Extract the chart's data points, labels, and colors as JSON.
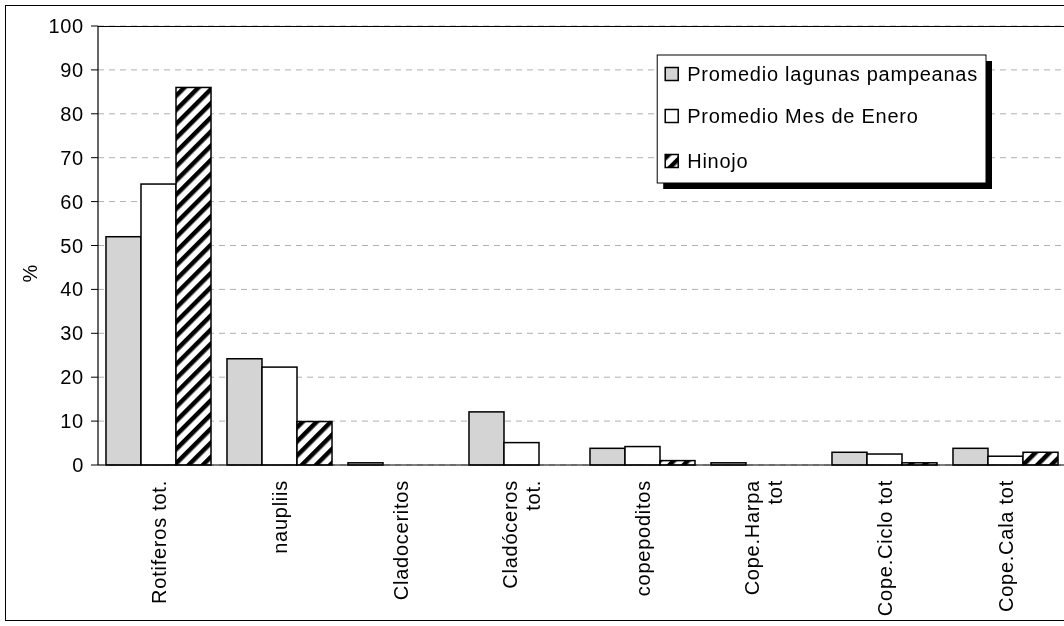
{
  "chart_data": {
    "type": "bar",
    "ylabel": "%",
    "categories": [
      "Rotiferos tot.",
      "naupliis",
      "Cladoceritos",
      "Cladóceros\ntot.",
      "copepoditos",
      "Cope.Harpa\ntot",
      "Cope.Ciclo tot",
      "Cope.Cala tot"
    ],
    "series": [
      {
        "name": "Promedio lagunas pampeanas",
        "color": "#d4d4d4",
        "values": [
          52,
          24.2,
          0.5,
          12.1,
          3.8,
          0.5,
          2.9,
          3.8
        ]
      },
      {
        "name": "Promedio Mes de Enero",
        "color": "#ffffff",
        "values": [
          64,
          22.3,
          0,
          5.1,
          4.2,
          0,
          2.5,
          2.0
        ]
      },
      {
        "name": "Hinojo",
        "color": "#000000",
        "values": [
          86,
          9.9,
          0,
          0,
          1.0,
          0,
          0.5,
          2.9
        ]
      }
    ],
    "ylim": [
      0,
      100
    ],
    "yticks": [
      0,
      10,
      20,
      30,
      40,
      50,
      60,
      70,
      80,
      90,
      100
    ],
    "grid": "y",
    "legend": "top right"
  }
}
